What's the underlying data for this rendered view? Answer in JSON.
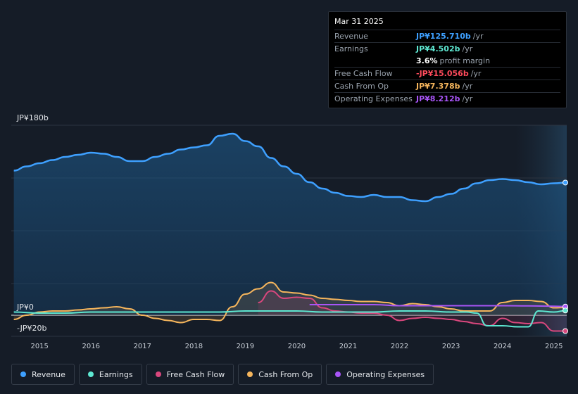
{
  "tooltip": {
    "date": "Mar 31 2025",
    "rows": [
      {
        "label": "Revenue",
        "value": "JP¥125.710b",
        "unit": "/yr",
        "color": "#3ea0ff"
      },
      {
        "label": "Earnings",
        "value": "JP¥4.502b",
        "unit": "/yr",
        "color": "#5ee8d2"
      },
      {
        "label": "",
        "value": "3.6%",
        "unit": "profit margin",
        "color": "#ffffff"
      },
      {
        "label": "Free Cash Flow",
        "value": "-JP¥15.056b",
        "unit": "/yr",
        "color": "#ff4b5c"
      },
      {
        "label": "Cash From Op",
        "value": "JP¥7.378b",
        "unit": "/yr",
        "color": "#f5b55c"
      },
      {
        "label": "Operating Expenses",
        "value": "JP¥8.212b",
        "unit": "/yr",
        "color": "#a855f7"
      }
    ]
  },
  "axis": {
    "y_top_label": "JP¥180b",
    "y_zero_label": "JP¥0",
    "y_bottom_label": "-JP¥20b"
  },
  "legend": [
    {
      "label": "Revenue",
      "color": "#3ea0ff"
    },
    {
      "label": "Earnings",
      "color": "#5ee8d2"
    },
    {
      "label": "Free Cash Flow",
      "color": "#d9477d"
    },
    {
      "label": "Cash From Op",
      "color": "#f5b55c"
    },
    {
      "label": "Operating Expenses",
      "color": "#a855f7"
    }
  ],
  "chart_data": {
    "type": "line",
    "title": "",
    "ylim": [
      -20,
      180
    ],
    "xlim": [
      2014.45,
      2025.25
    ],
    "x_ticks": [
      "2015",
      "2016",
      "2017",
      "2018",
      "2019",
      "2020",
      "2021",
      "2022",
      "2023",
      "2024",
      "2025"
    ],
    "series": [
      {
        "name": "Revenue",
        "color": "#3ea0ff",
        "fill": true,
        "x": [
          2014.5,
          2014.75,
          2015,
          2015.25,
          2015.5,
          2015.75,
          2016,
          2016.25,
          2016.5,
          2016.75,
          2017,
          2017.25,
          2017.5,
          2017.75,
          2018,
          2018.25,
          2018.5,
          2018.75,
          2019,
          2019.25,
          2019.5,
          2019.75,
          2020,
          2020.25,
          2020.5,
          2020.75,
          2021,
          2021.25,
          2021.5,
          2021.75,
          2022,
          2022.25,
          2022.5,
          2022.75,
          2023,
          2023.25,
          2023.5,
          2023.75,
          2024,
          2024.25,
          2024.5,
          2024.75,
          2025,
          2025.25
        ],
        "values": [
          137,
          141,
          144,
          147,
          150,
          152,
          154,
          153,
          150,
          146,
          146,
          150,
          153,
          157,
          159,
          161,
          170,
          172,
          165,
          160,
          149,
          141,
          134,
          126,
          120,
          116,
          113,
          112,
          114,
          112,
          112,
          109,
          108,
          112,
          115,
          120,
          125,
          128,
          129,
          128,
          126,
          124,
          125,
          125.7
        ]
      },
      {
        "name": "Earnings",
        "color": "#5ee8d2",
        "x": [
          2014.5,
          2015,
          2015.5,
          2016,
          2016.5,
          2017,
          2017.5,
          2018,
          2018.5,
          2019,
          2019.5,
          2020,
          2020.5,
          2021,
          2021.5,
          2022,
          2022.5,
          2023,
          2023.3,
          2023.5,
          2023.7,
          2024,
          2024.3,
          2024.5,
          2024.7,
          2025,
          2025.25
        ],
        "values": [
          3,
          2,
          2,
          3,
          3,
          3,
          3,
          3,
          3,
          4,
          4,
          4,
          3,
          3,
          3,
          4,
          4,
          3,
          3,
          2,
          -10,
          -10,
          -11,
          -11,
          4,
          3,
          4.5
        ]
      },
      {
        "name": "Free Cash Flow",
        "color": "#d9477d",
        "x": [
          2019.25,
          2019.5,
          2019.75,
          2020,
          2020.25,
          2020.5,
          2020.75,
          2021,
          2021.25,
          2021.5,
          2021.75,
          2022,
          2022.25,
          2022.5,
          2022.75,
          2023,
          2023.25,
          2023.5,
          2023.75,
          2024,
          2024.25,
          2024.5,
          2024.75,
          2025,
          2025.25
        ],
        "values": [
          12,
          23,
          16,
          17,
          16,
          7,
          4,
          3,
          2,
          2,
          0,
          -5,
          -3,
          -2,
          -3,
          -4,
          -6,
          -8,
          -10,
          -3,
          -7,
          -8,
          -7,
          -15,
          -15
        ]
      },
      {
        "name": "Cash From Op",
        "color": "#f5b55c",
        "x": [
          2014.5,
          2014.75,
          2015,
          2015.25,
          2015.5,
          2015.75,
          2016,
          2016.25,
          2016.5,
          2016.75,
          2017,
          2017.25,
          2017.5,
          2017.75,
          2018,
          2018.25,
          2018.5,
          2018.75,
          2019,
          2019.25,
          2019.5,
          2019.75,
          2020,
          2020.25,
          2020.5,
          2020.75,
          2021,
          2021.25,
          2021.5,
          2021.75,
          2022,
          2022.25,
          2022.5,
          2022.75,
          2023,
          2023.25,
          2023.5,
          2023.75,
          2024,
          2024.25,
          2024.5,
          2024.75,
          2025,
          2025.25
        ],
        "values": [
          -4,
          0,
          3,
          4,
          4,
          5,
          6,
          7,
          8,
          6,
          0,
          -3,
          -5,
          -7,
          -4,
          -4,
          -5,
          8,
          20,
          25,
          31,
          22,
          21,
          19,
          16,
          15,
          14,
          13,
          13,
          12,
          9,
          11,
          10,
          8,
          6,
          4,
          4,
          4,
          12,
          14,
          14,
          13,
          7,
          7.4
        ]
      },
      {
        "name": "Operating Expenses",
        "color": "#a855f7",
        "x": [
          2020.25,
          2020.5,
          2021,
          2021.5,
          2022,
          2022.5,
          2023,
          2023.5,
          2024,
          2024.5,
          2025,
          2025.25
        ],
        "values": [
          10,
          10,
          10,
          10,
          9,
          9,
          9,
          9,
          9,
          8.8,
          8.5,
          8.2
        ]
      }
    ]
  }
}
